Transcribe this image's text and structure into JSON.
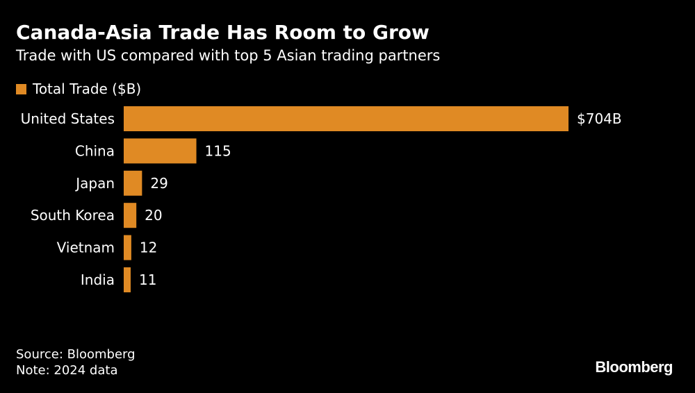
{
  "header": {
    "title": "Canada-Asia Trade Has Room to Grow",
    "subtitle": "Trade with US compared with top 5 Asian trading partners"
  },
  "legend": {
    "label": "Total Trade ($B)"
  },
  "colors": {
    "bar": "#E08A24",
    "background": "#000000",
    "text": "#FFFFFF"
  },
  "chart_data": {
    "type": "bar",
    "orientation": "horizontal",
    "categories": [
      "United States",
      "China",
      "Japan",
      "South Korea",
      "Vietnam",
      "India"
    ],
    "series": [
      {
        "name": "Total Trade ($B)",
        "values": [
          704,
          115,
          29,
          20,
          12,
          11
        ]
      }
    ],
    "data_labels": [
      "$704B",
      "115",
      "29",
      "20",
      "12",
      "11"
    ],
    "title": "Canada-Asia Trade Has Room to Grow",
    "subtitle": "Trade with US compared with top 5 Asian trading partners",
    "xlabel": "",
    "ylabel": "",
    "xlim": [
      0,
      704
    ],
    "grid": false,
    "legend_position": "top-left"
  },
  "footer": {
    "source": "Source: Bloomberg",
    "note": "Note: 2024 data",
    "brand": "Bloomberg"
  }
}
